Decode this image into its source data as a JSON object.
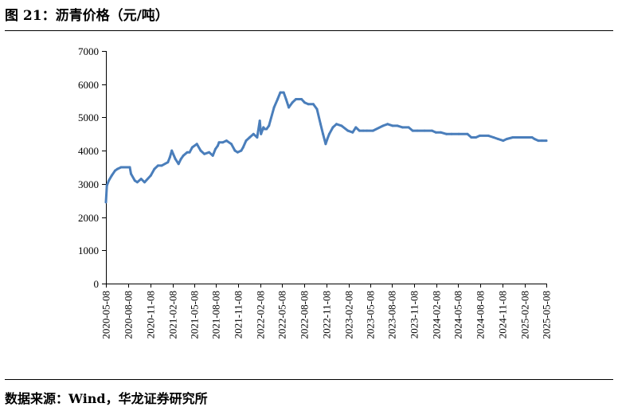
{
  "figure": {
    "title": "图 21：沥青价格（元/吨）",
    "source": "数据来源：Wind，华龙证券研究所"
  },
  "chart_data": {
    "type": "line",
    "title": "",
    "xlabel": "",
    "ylabel": "",
    "ylim": [
      0,
      7000
    ],
    "y_ticks": [
      "0",
      "1000",
      "2000",
      "3000",
      "4000",
      "5000",
      "6000",
      "7000"
    ],
    "x_ticks": [
      "2020-05-08",
      "2020-08-08",
      "2020-11-08",
      "2021-02-08",
      "2021-05-08",
      "2021-08-08",
      "2021-11-08",
      "2022-02-08",
      "2022-05-08",
      "2022-08-08",
      "2022-11-08",
      "2023-02-08",
      "2023-05-08",
      "2023-08-08",
      "2023-11-08",
      "2024-02-08",
      "2024-05-08",
      "2024-08-08",
      "2024-11-08",
      "2025-02-08",
      "2025-05-08"
    ],
    "grid": false,
    "legend": "none",
    "series_color": "#4a7ebb",
    "series": [
      {
        "name": "",
        "x": [
          "2020-05-08",
          "2020-05-12",
          "2020-05-20",
          "2020-06-01",
          "2020-06-15",
          "2020-06-25",
          "2020-07-10",
          "2020-08-15",
          "2020-08-20",
          "2020-09-05",
          "2020-09-15",
          "2020-10-01",
          "2020-10-15",
          "2020-11-10",
          "2020-11-25",
          "2020-12-10",
          "2020-12-25",
          "2021-01-20",
          "2021-01-28",
          "2021-02-05",
          "2021-02-20",
          "2021-03-05",
          "2021-03-15",
          "2021-03-25",
          "2021-04-10",
          "2021-04-20",
          "2021-05-01",
          "2021-05-20",
          "2021-06-05",
          "2021-06-20",
          "2021-07-10",
          "2021-07-25",
          "2021-08-05",
          "2021-08-15",
          "2021-08-20",
          "2021-09-05",
          "2021-09-20",
          "2021-10-10",
          "2021-10-25",
          "2021-11-05",
          "2021-11-20",
          "2021-11-28",
          "2021-12-10",
          "2021-12-25",
          "2022-01-10",
          "2022-01-25",
          "2022-02-05",
          "2022-02-10",
          "2022-02-20",
          "2022-02-25",
          "2022-03-05",
          "2022-03-15",
          "2022-04-05",
          "2022-04-20",
          "2022-05-01",
          "2022-05-15",
          "2022-05-25",
          "2022-06-05",
          "2022-06-20",
          "2022-07-05",
          "2022-07-15",
          "2022-07-28",
          "2022-08-10",
          "2022-08-25",
          "2022-09-15",
          "2022-09-30",
          "2022-10-15",
          "2022-10-25",
          "2022-11-05",
          "2022-11-12",
          "2022-11-20",
          "2022-12-05",
          "2022-12-20",
          "2023-01-10",
          "2023-02-05",
          "2023-02-25",
          "2023-03-10",
          "2023-03-25",
          "2023-04-10",
          "2023-04-25",
          "2023-05-20",
          "2023-07-01",
          "2023-07-20",
          "2023-08-10",
          "2023-08-30",
          "2023-09-20",
          "2023-10-15",
          "2023-11-01",
          "2023-11-20",
          "2023-12-20",
          "2024-01-20",
          "2024-02-05",
          "2024-02-25",
          "2024-03-20",
          "2024-04-10",
          "2024-05-10",
          "2024-06-15",
          "2024-07-01",
          "2024-07-20",
          "2024-08-05",
          "2024-09-10",
          "2024-10-01",
          "2024-10-20",
          "2024-11-10",
          "2024-11-25",
          "2024-12-20",
          "2025-01-15",
          "2025-02-10",
          "2025-03-10",
          "2025-03-20",
          "2025-04-05",
          "2025-04-20",
          "2025-05-08"
        ],
        "values": [
          2450,
          2950,
          3100,
          3250,
          3400,
          3450,
          3500,
          3500,
          3300,
          3100,
          3050,
          3150,
          3050,
          3250,
          3450,
          3550,
          3550,
          3650,
          3800,
          4000,
          3750,
          3600,
          3750,
          3850,
          3950,
          3950,
          4100,
          4200,
          4000,
          3900,
          3950,
          3850,
          4050,
          4150,
          4250,
          4250,
          4300,
          4200,
          4000,
          3950,
          4000,
          4100,
          4300,
          4400,
          4500,
          4400,
          4900,
          4500,
          4700,
          4650,
          4650,
          4750,
          5300,
          5550,
          5750,
          5750,
          5550,
          5300,
          5450,
          5550,
          5550,
          5550,
          5450,
          5400,
          5400,
          5250,
          4800,
          4500,
          4200,
          4350,
          4500,
          4700,
          4800,
          4750,
          4600,
          4550,
          4700,
          4600,
          4600,
          4600,
          4600,
          4750,
          4800,
          4750,
          4750,
          4700,
          4700,
          4600,
          4600,
          4600,
          4600,
          4550,
          4550,
          4500,
          4500,
          4500,
          4500,
          4400,
          4400,
          4450,
          4450,
          4400,
          4350,
          4300,
          4350,
          4400,
          4400,
          4400,
          4400,
          4350,
          4300,
          4300,
          4300
        ]
      }
    ]
  }
}
